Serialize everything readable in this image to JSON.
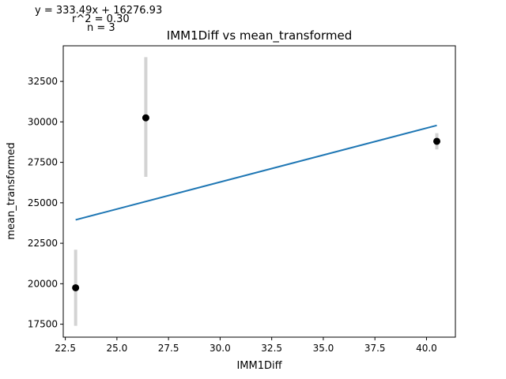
{
  "chart_data": {
    "type": "scatter",
    "title": "IMM1Diff vs mean_transformed",
    "xlabel": "IMM1Diff",
    "ylabel": "mean_transformed",
    "xlim": [
      22.4,
      41.4
    ],
    "ylim": [
      16700,
      34700
    ],
    "xticks": [
      22.5,
      25.0,
      27.5,
      30.0,
      32.5,
      35.0,
      37.5,
      40.0
    ],
    "xtick_labels": [
      "22.5",
      "25.0",
      "27.5",
      "30.0",
      "32.5",
      "35.0",
      "37.5",
      "40.0"
    ],
    "yticks": [
      17500,
      20000,
      22500,
      25000,
      27500,
      30000,
      32500
    ],
    "ytick_labels": [
      "17500",
      "20000",
      "22500",
      "25000",
      "27500",
      "30000",
      "32500"
    ],
    "grid": false,
    "points": [
      {
        "x": 23.0,
        "y": 19750,
        "err_low": 17400,
        "err_high": 22100
      },
      {
        "x": 26.4,
        "y": 30250,
        "err_low": 26600,
        "err_high": 34000
      },
      {
        "x": 40.5,
        "y": 28800,
        "err_low": 28300,
        "err_high": 29300
      }
    ],
    "fit_line": {
      "slope": 333.49,
      "intercept": 16276.93,
      "x_range": [
        23.0,
        40.5
      ]
    },
    "annotations": [
      "y = 333.49x + 16276.93",
      "r^2 = 0.30",
      "n = 3"
    ],
    "colors": {
      "points": "#000000",
      "errorbars": "#d3d3d3",
      "fit": "#1f77b4"
    }
  }
}
